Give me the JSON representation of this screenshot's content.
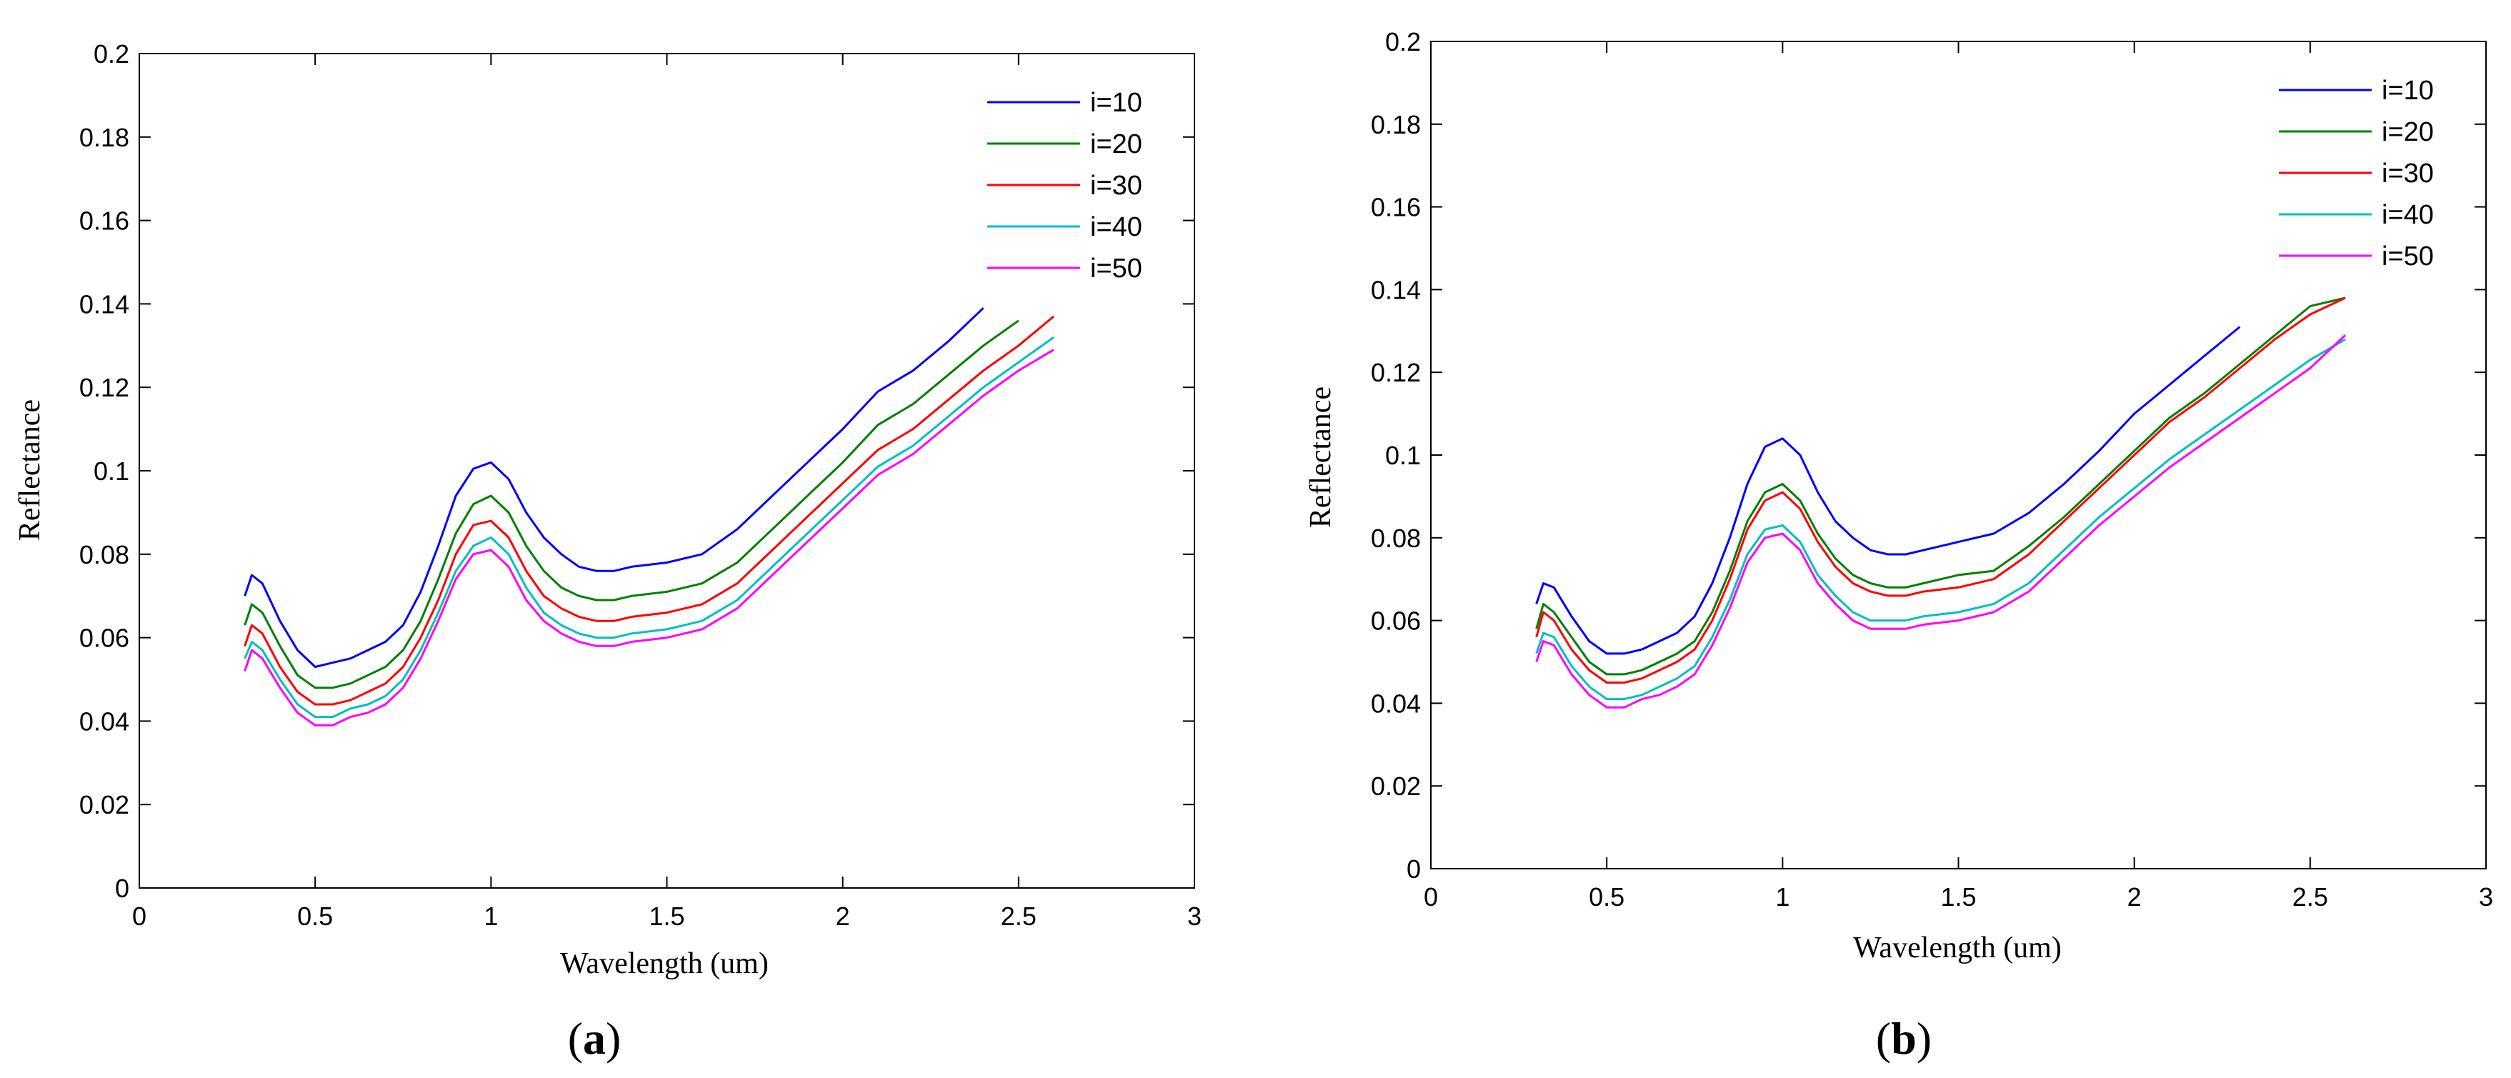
{
  "chart_data": [
    {
      "type": "line",
      "panel_label": "a",
      "xlabel": "Wavelength (um)",
      "ylabel": "Reflectance",
      "xlim": [
        0,
        3
      ],
      "ylim": [
        0,
        0.2
      ],
      "xticks": [
        0,
        0.5,
        1,
        1.5,
        2,
        2.5,
        3
      ],
      "xtick_labels": [
        "0",
        "0.5",
        "1",
        "1.5",
        "2",
        "2.5",
        "3"
      ],
      "yticks": [
        0,
        0.02,
        0.04,
        0.06,
        0.08,
        0.1,
        0.12,
        0.14,
        0.16,
        0.18,
        0.2
      ],
      "ytick_labels": [
        "0",
        "0.02",
        "0.04",
        "0.06",
        "0.08",
        "0.1",
        "0.12",
        "0.14",
        "0.16",
        "0.18",
        "0.2"
      ],
      "legend_position": "top-right",
      "x": [
        0.3,
        0.32,
        0.35,
        0.4,
        0.45,
        0.5,
        0.55,
        0.6,
        0.65,
        0.7,
        0.75,
        0.8,
        0.85,
        0.9,
        0.95,
        1.0,
        1.05,
        1.1,
        1.15,
        1.2,
        1.25,
        1.3,
        1.35,
        1.4,
        1.5,
        1.6,
        1.7,
        1.8,
        1.9,
        2.0,
        2.1,
        2.2,
        2.3,
        2.4,
        2.5,
        2.6
      ],
      "series": [
        {
          "name": "i=10",
          "color": "#0000ff",
          "values": [
            0.07,
            0.075,
            0.073,
            0.064,
            0.057,
            0.053,
            0.054,
            0.055,
            0.057,
            0.059,
            0.063,
            0.071,
            0.082,
            0.094,
            0.1005,
            0.102,
            0.098,
            0.09,
            0.084,
            0.08,
            0.077,
            0.076,
            0.076,
            0.077,
            0.078,
            0.08,
            0.086,
            0.094,
            0.102,
            0.11,
            0.119,
            0.124,
            0.131,
            0.139,
            null,
            null
          ]
        },
        {
          "name": "i=20",
          "color": "#008000",
          "values": [
            0.063,
            0.068,
            0.066,
            0.058,
            0.051,
            0.048,
            0.048,
            0.049,
            0.051,
            0.053,
            0.057,
            0.064,
            0.074,
            0.085,
            0.092,
            0.094,
            0.09,
            0.082,
            0.076,
            0.072,
            0.07,
            0.069,
            0.069,
            0.07,
            0.071,
            0.073,
            0.078,
            0.086,
            0.094,
            0.102,
            0.111,
            0.116,
            0.123,
            0.13,
            0.136,
            null
          ]
        },
        {
          "name": "i=30",
          "color": "#ff0000",
          "values": [
            0.058,
            0.063,
            0.061,
            0.053,
            0.047,
            0.044,
            0.044,
            0.045,
            0.047,
            0.049,
            0.053,
            0.06,
            0.069,
            0.08,
            0.087,
            0.088,
            0.084,
            0.076,
            0.07,
            0.067,
            0.065,
            0.064,
            0.064,
            0.065,
            0.066,
            0.068,
            0.073,
            0.081,
            0.089,
            0.097,
            0.105,
            0.11,
            0.117,
            0.124,
            0.13,
            0.137
          ]
        },
        {
          "name": "i=40",
          "color": "#00bfbf",
          "values": [
            0.055,
            0.059,
            0.057,
            0.05,
            0.044,
            0.041,
            0.041,
            0.043,
            0.044,
            0.046,
            0.05,
            0.057,
            0.066,
            0.076,
            0.082,
            0.084,
            0.08,
            0.072,
            0.066,
            0.063,
            0.061,
            0.06,
            0.06,
            0.061,
            0.062,
            0.064,
            0.069,
            0.077,
            0.085,
            0.093,
            0.101,
            0.106,
            0.113,
            0.12,
            0.126,
            0.132
          ]
        },
        {
          "name": "i=50",
          "color": "#ff00ff",
          "values": [
            0.052,
            0.057,
            0.055,
            0.048,
            0.042,
            0.039,
            0.039,
            0.041,
            0.042,
            0.044,
            0.048,
            0.055,
            0.064,
            0.074,
            0.08,
            0.081,
            0.077,
            0.069,
            0.064,
            0.061,
            0.059,
            0.058,
            0.058,
            0.059,
            0.06,
            0.062,
            0.067,
            0.075,
            0.083,
            0.091,
            0.099,
            0.104,
            0.111,
            0.118,
            0.124,
            0.129
          ]
        }
      ]
    },
    {
      "type": "line",
      "panel_label": "b",
      "xlabel": "Wavelength (um)",
      "ylabel": "Reflectance",
      "xlim": [
        0,
        3
      ],
      "ylim": [
        0,
        0.2
      ],
      "xticks": [
        0,
        0.5,
        1,
        1.5,
        2,
        2.5,
        3
      ],
      "xtick_labels": [
        "0",
        "0.5",
        "1",
        "1.5",
        "2",
        "2.5",
        "3"
      ],
      "yticks": [
        0,
        0.02,
        0.04,
        0.06,
        0.08,
        0.1,
        0.12,
        0.14,
        0.16,
        0.18,
        0.2
      ],
      "ytick_labels": [
        "0",
        "0.02",
        "0.04",
        "0.06",
        "0.08",
        "0.1",
        "0.12",
        "0.14",
        "0.16",
        "0.18",
        "0.2"
      ],
      "legend_position": "top-right",
      "x": [
        0.3,
        0.32,
        0.35,
        0.4,
        0.45,
        0.5,
        0.55,
        0.6,
        0.65,
        0.7,
        0.75,
        0.8,
        0.85,
        0.9,
        0.95,
        1.0,
        1.05,
        1.1,
        1.15,
        1.2,
        1.25,
        1.3,
        1.35,
        1.4,
        1.5,
        1.6,
        1.7,
        1.8,
        1.9,
        2.0,
        2.1,
        2.2,
        2.3,
        2.4,
        2.5,
        2.6
      ],
      "series": [
        {
          "name": "i=10",
          "color": "#0000ff",
          "values": [
            0.064,
            0.069,
            0.068,
            0.061,
            0.055,
            0.052,
            0.052,
            0.053,
            0.055,
            0.057,
            0.061,
            0.069,
            0.08,
            0.093,
            0.102,
            0.104,
            0.1,
            0.091,
            0.084,
            0.08,
            0.077,
            0.076,
            0.076,
            0.077,
            0.079,
            0.081,
            0.086,
            0.093,
            0.101,
            0.11,
            0.117,
            0.124,
            0.131,
            null,
            null,
            null
          ]
        },
        {
          "name": "i=20",
          "color": "#008000",
          "values": [
            0.058,
            0.064,
            0.062,
            0.056,
            0.05,
            0.047,
            0.047,
            0.048,
            0.05,
            0.052,
            0.055,
            0.062,
            0.072,
            0.084,
            0.091,
            0.093,
            0.089,
            0.081,
            0.075,
            0.071,
            0.069,
            0.068,
            0.068,
            0.069,
            0.071,
            0.072,
            0.078,
            0.085,
            0.093,
            0.101,
            0.109,
            0.115,
            0.122,
            0.129,
            0.136,
            0.138
          ]
        },
        {
          "name": "i=30",
          "color": "#ff0000",
          "values": [
            0.056,
            0.062,
            0.06,
            0.053,
            0.048,
            0.045,
            0.045,
            0.046,
            0.048,
            0.05,
            0.053,
            0.06,
            0.07,
            0.082,
            0.089,
            0.091,
            0.087,
            0.079,
            0.073,
            0.069,
            0.067,
            0.066,
            0.066,
            0.067,
            0.068,
            0.07,
            0.076,
            0.084,
            0.092,
            0.1,
            0.108,
            0.114,
            0.121,
            0.128,
            0.134,
            0.138
          ]
        },
        {
          "name": "i=40",
          "color": "#00bfbf",
          "values": [
            0.052,
            0.057,
            0.056,
            0.049,
            0.044,
            0.041,
            0.041,
            0.042,
            0.044,
            0.046,
            0.049,
            0.056,
            0.065,
            0.076,
            0.082,
            0.083,
            0.079,
            0.071,
            0.066,
            0.062,
            0.06,
            0.06,
            0.06,
            0.061,
            0.062,
            0.064,
            0.069,
            0.077,
            0.085,
            0.092,
            0.099,
            0.105,
            0.111,
            0.117,
            0.123,
            0.128
          ]
        },
        {
          "name": "i=50",
          "color": "#ff00ff",
          "values": [
            0.05,
            0.055,
            0.054,
            0.047,
            0.042,
            0.039,
            0.039,
            0.041,
            0.042,
            0.044,
            0.047,
            0.054,
            0.063,
            0.074,
            0.08,
            0.081,
            0.077,
            0.069,
            0.064,
            0.06,
            0.058,
            0.058,
            0.058,
            0.059,
            0.06,
            0.062,
            0.067,
            0.075,
            0.083,
            0.09,
            0.097,
            0.103,
            0.109,
            0.115,
            0.121,
            0.129
          ]
        }
      ]
    }
  ]
}
